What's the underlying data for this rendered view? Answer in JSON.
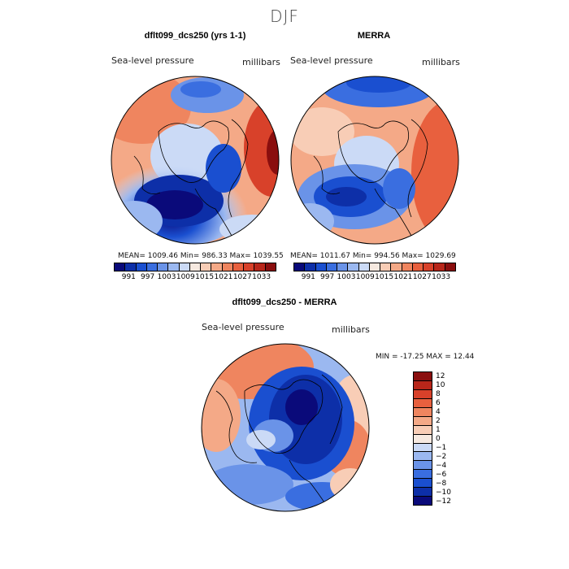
{
  "season": "DJF",
  "panels": [
    {
      "title": "dflt099_dcs250 (yrs 1-1)",
      "variable": "Sea-level pressure",
      "units": "millibars",
      "stats": "MEAN= 1009.46   Min= 986.33   Max= 1039.55"
    },
    {
      "title": "MERRA",
      "variable": "Sea-level pressure",
      "units": "millibars",
      "stats": "MEAN= 1011.67   Min= 994.56   Max= 1029.69"
    },
    {
      "title": "dflt099_dcs250 - MERRA",
      "variable": "Sea-level pressure",
      "units": "millibars",
      "stats": "MIN = -17.25  MAX =  12.44"
    }
  ],
  "colorbar_abs": {
    "colors": [
      "#0a0a7a",
      "#0d2fa8",
      "#1a4fd0",
      "#3a6ee0",
      "#6a93e8",
      "#9bb8f0",
      "#cbdaf6",
      "#f6e9e0",
      "#f8cdb6",
      "#f4a987",
      "#ef855f",
      "#e8603e",
      "#d8412a",
      "#b8261a",
      "#8a0e0e"
    ],
    "labels": [
      "991",
      "997",
      "1003",
      "1009",
      "1015",
      "1021",
      "1027",
      "1033"
    ]
  },
  "colorbar_diff": {
    "colors": [
      "#8a0e0e",
      "#b8261a",
      "#d8412a",
      "#e8603e",
      "#ef855f",
      "#f4a987",
      "#f8cdb6",
      "#f6e9e0",
      "#cbdaf6",
      "#9bb8f0",
      "#6a93e8",
      "#3a6ee0",
      "#1a4fd0",
      "#0d2fa8",
      "#0a0a7a"
    ],
    "labels": [
      "12",
      "10",
      "8",
      "6",
      "4",
      "2",
      "1",
      "0",
      "−1",
      "−2",
      "−4",
      "−6",
      "−8",
      "−10",
      "−12"
    ]
  }
}
